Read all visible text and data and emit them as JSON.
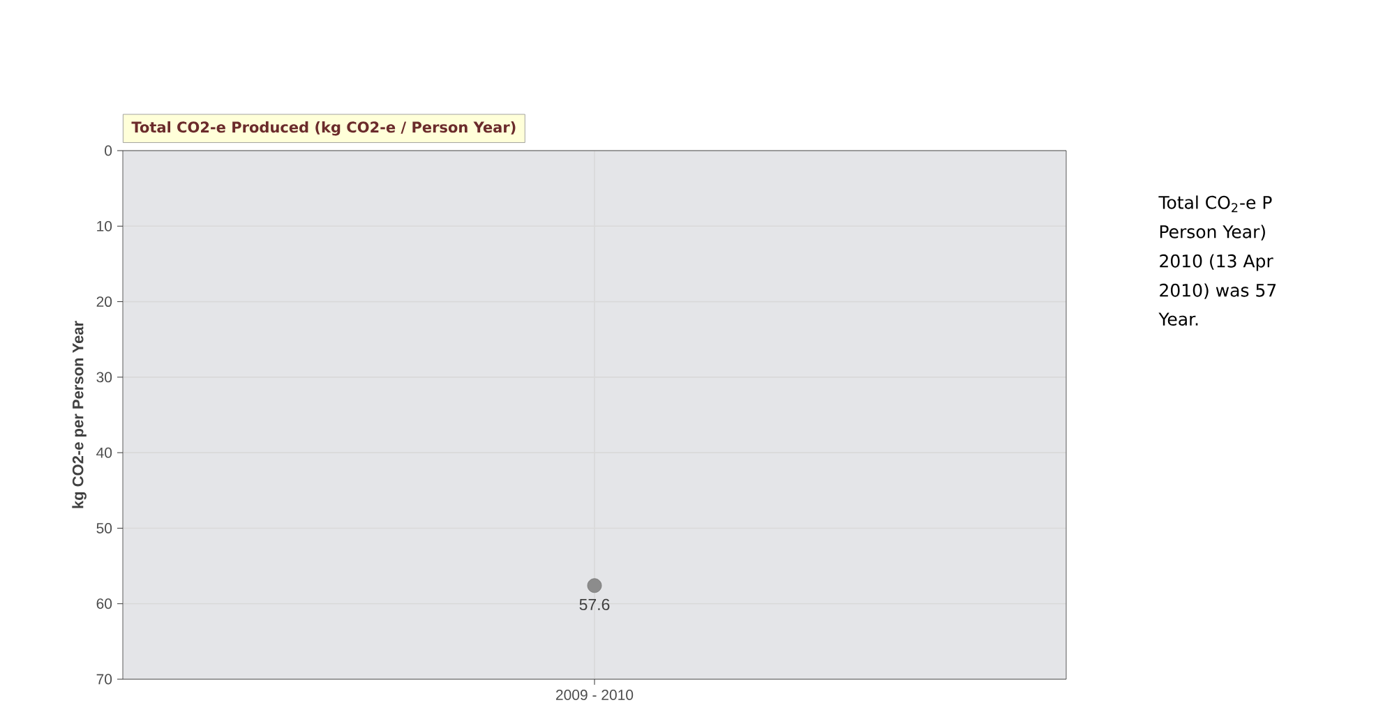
{
  "chart_data": {
    "type": "line",
    "title": "Total CO2-e Produced (kg CO2-e / Person Year)",
    "ylabel": "kg CO2-e per Person Year",
    "categories": [
      "2009 - 2010"
    ],
    "series": [
      {
        "color": "#8c8c8c",
        "values": [
          57.6
        ]
      }
    ],
    "ylim": [
      70,
      0
    ],
    "yticks": [
      0,
      10,
      20,
      30,
      40,
      50,
      60,
      70
    ],
    "grid": true,
    "marker": "circle",
    "data_labels": true,
    "annotations": [
      "Total CO$_{2}$-e P",
      "Person Year)",
      "2010 (13 Apr",
      "2010) was 57",
      "Year."
    ]
  }
}
